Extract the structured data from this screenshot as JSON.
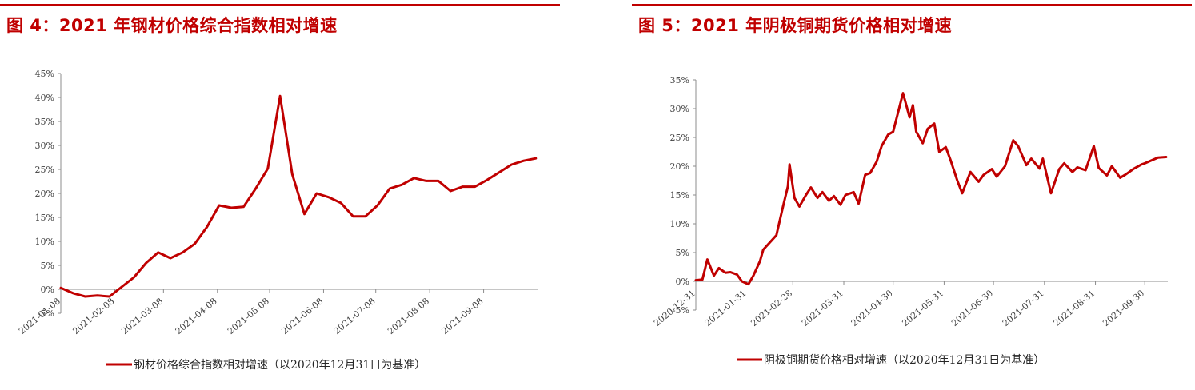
{
  "charts": [
    {
      "title": "图 4：2021 年钢材价格综合指数相对增速",
      "legend": "钢材价格综合指数相对增速（以2020年12月31日为基准）",
      "color": "#c00000"
    },
    {
      "title": "图 5：2021 年阴极铜期货价格相对增速",
      "legend": "阴极铜期货价格相对增速（以2020年12月31日为基准）",
      "color": "#c00000"
    }
  ],
  "chart_data": [
    {
      "type": "line",
      "title": "图 4：2021 年钢材价格综合指数相对增速",
      "series": [
        {
          "name": "钢材价格综合指数相对增速（以2020年12月31日为基准）",
          "x": [
            "2021-01-08",
            "2021-01-15",
            "2021-01-22",
            "2021-01-29",
            "2021-02-05",
            "2021-02-12",
            "2021-02-19",
            "2021-02-26",
            "2021-03-05",
            "2021-03-12",
            "2021-03-19",
            "2021-03-26",
            "2021-04-02",
            "2021-04-09",
            "2021-04-16",
            "2021-04-23",
            "2021-04-30",
            "2021-05-07",
            "2021-05-14",
            "2021-05-21",
            "2021-05-28",
            "2021-06-04",
            "2021-06-11",
            "2021-06-18",
            "2021-06-25",
            "2021-07-02",
            "2021-07-09",
            "2021-07-16",
            "2021-07-23",
            "2021-07-30",
            "2021-08-06",
            "2021-08-13",
            "2021-08-20",
            "2021-08-27",
            "2021-09-03",
            "2021-09-10",
            "2021-09-17",
            "2021-09-24",
            "2021-10-01",
            "2021-10-08"
          ],
          "values": [
            0.3,
            -0.8,
            -1.5,
            -1.3,
            -1.5,
            0.5,
            2.5,
            5.5,
            7.7,
            6.5,
            7.7,
            9.5,
            13.0,
            17.5,
            17.0,
            17.2,
            21.0,
            25.2,
            40.3,
            24.0,
            15.7,
            20.0,
            19.2,
            18.0,
            15.2,
            15.2,
            17.5,
            21.0,
            21.8,
            23.2,
            22.6,
            22.6,
            20.5,
            21.4,
            21.4,
            22.8,
            24.4,
            26.0,
            26.8,
            27.3
          ]
        }
      ],
      "xticks": [
        "2021-01-08",
        "2021-02-08",
        "2021-03-08",
        "2021-04-08",
        "2021-05-08",
        "2021-06-08",
        "2021-07-08",
        "2021-08-08",
        "2021-09-08"
      ],
      "yticks": [
        "-5%",
        "0%",
        "5%",
        "10%",
        "15%",
        "20%",
        "25%",
        "30%",
        "35%",
        "40%",
        "45%"
      ],
      "ylim": [
        -5,
        45
      ],
      "grid": false,
      "legend_position": "bottom"
    },
    {
      "type": "line",
      "title": "图 5：2021 年阴极铜期货价格相对增速",
      "series": [
        {
          "name": "阴极铜期货价格相对增速（以2020年12月31日为基准）",
          "x": [
            "2020-12-31",
            "2021-01-04",
            "2021-01-07",
            "2021-01-11",
            "2021-01-14",
            "2021-01-18",
            "2021-01-21",
            "2021-01-25",
            "2021-01-28",
            "2021-02-01",
            "2021-02-04",
            "2021-02-08",
            "2021-02-10",
            "2021-02-18",
            "2021-02-22",
            "2021-02-25",
            "2021-02-26",
            "2021-03-01",
            "2021-03-04",
            "2021-03-08",
            "2021-03-11",
            "2021-03-15",
            "2021-03-18",
            "2021-03-22",
            "2021-03-25",
            "2021-03-29",
            "2021-04-01",
            "2021-04-06",
            "2021-04-09",
            "2021-04-13",
            "2021-04-16",
            "2021-04-20",
            "2021-04-23",
            "2021-04-27",
            "2021-04-30",
            "2021-05-06",
            "2021-05-10",
            "2021-05-12",
            "2021-05-14",
            "2021-05-18",
            "2021-05-21",
            "2021-05-25",
            "2021-05-28",
            "2021-06-01",
            "2021-06-04",
            "2021-06-08",
            "2021-06-11",
            "2021-06-16",
            "2021-06-21",
            "2021-06-24",
            "2021-06-29",
            "2021-07-02",
            "2021-07-07",
            "2021-07-12",
            "2021-07-15",
            "2021-07-20",
            "2021-07-23",
            "2021-07-28",
            "2021-07-30",
            "2021-08-04",
            "2021-08-09",
            "2021-08-12",
            "2021-08-17",
            "2021-08-20",
            "2021-08-25",
            "2021-08-30",
            "2021-09-02",
            "2021-09-07",
            "2021-09-10",
            "2021-09-15",
            "2021-09-18",
            "2021-09-23",
            "2021-09-28",
            "2021-09-30",
            "2021-10-08",
            "2021-10-13"
          ],
          "values": [
            0.2,
            0.3,
            3.8,
            1.0,
            2.3,
            1.5,
            1.6,
            1.2,
            0.0,
            -0.5,
            1.0,
            3.5,
            5.5,
            8.0,
            13.0,
            16.5,
            20.3,
            14.5,
            13.0,
            15.0,
            16.3,
            14.5,
            15.5,
            14.0,
            14.8,
            13.3,
            15.0,
            15.5,
            13.5,
            18.5,
            18.8,
            20.8,
            23.5,
            25.5,
            26.0,
            32.7,
            28.5,
            30.6,
            26.0,
            24.0,
            26.5,
            27.4,
            22.5,
            23.3,
            21.0,
            17.5,
            15.3,
            19.0,
            17.3,
            18.5,
            19.5,
            18.2,
            20.0,
            24.5,
            23.5,
            20.2,
            21.3,
            19.6,
            21.3,
            15.3,
            19.5,
            20.5,
            19.0,
            19.8,
            19.3,
            23.5,
            19.7,
            18.4,
            20.0,
            18.0,
            18.5,
            19.5,
            20.3,
            20.5,
            21.5,
            21.6
          ]
        }
      ],
      "xticks": [
        "2020-12-31",
        "2021-01-31",
        "2021-02-28",
        "2021-03-31",
        "2021-04-30",
        "2021-05-31",
        "2021-06-30",
        "2021-07-31",
        "2021-08-31",
        "2021-09-30"
      ],
      "yticks": [
        "-5%",
        "0%",
        "5%",
        "10%",
        "15%",
        "20%",
        "25%",
        "30%",
        "35%"
      ],
      "ylim": [
        -5,
        35
      ],
      "grid": false,
      "legend_position": "bottom"
    }
  ]
}
